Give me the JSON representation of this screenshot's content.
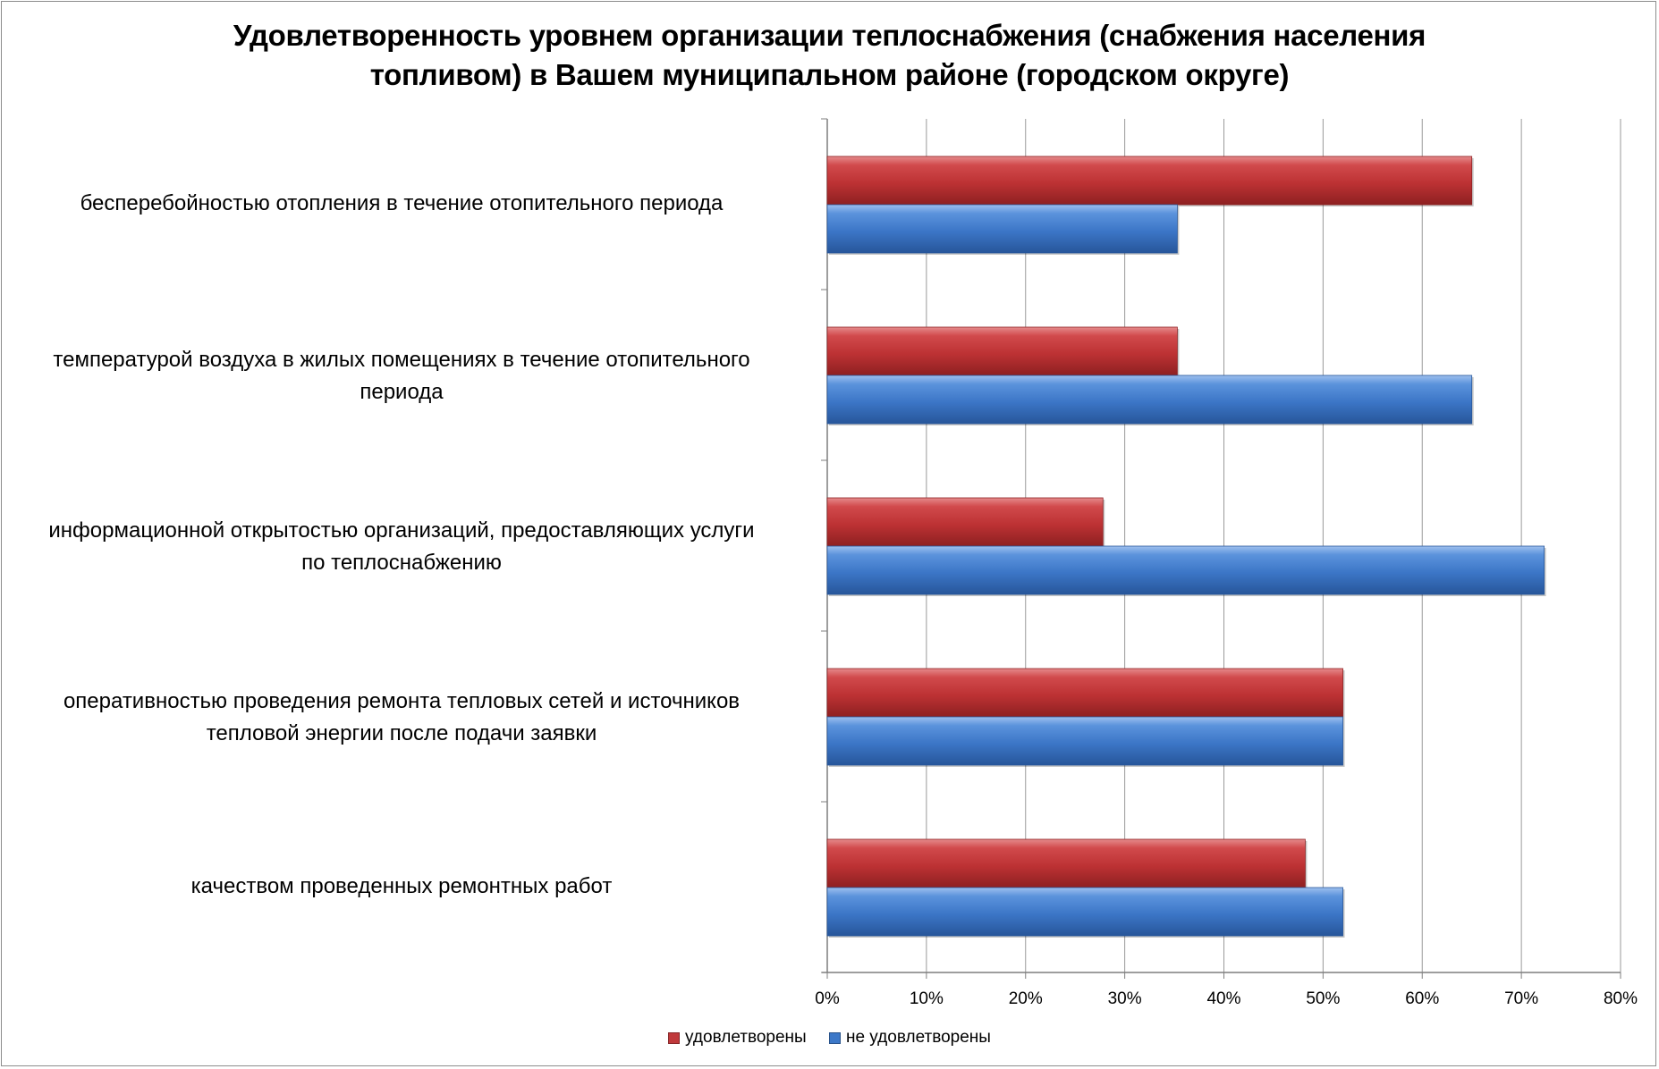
{
  "chart_data": {
    "type": "bar",
    "orientation": "horizontal",
    "title": "Удовлетворенность уровнем организации теплоснабжения (снабжения населения топливом) в Вашем муниципальном районе (городском округе)",
    "title_lines": [
      "Удовлетворенность уровнем организации теплоснабжения (снабжения населения",
      "топливом) в Вашем муниципальном районе (городском округе)"
    ],
    "categories": [
      "бесперебойностью  отопления в течение отопительного периода",
      "температурой  воздуха в жилых помещениях в течение отопительного периода",
      "информационной открытостью  организаций, предоставляющих услуги по теплоснабжению",
      "оперативностью проведения ремонта тепловых сетей и источников тепловой энергии после подачи заявки",
      "качеством  проведенных  ремонтных  работ"
    ],
    "category_lines": [
      [
        "бесперебойностью  отопления в течение отопительного периода"
      ],
      [
        "температурой  воздуха в жилых помещениях в течение отопительного",
        "периода"
      ],
      [
        "информационной открытостью  организаций, предоставляющих услуги",
        "по теплоснабжению"
      ],
      [
        "оперативностью проведения ремонта тепловых сетей и источников",
        "тепловой энергии после подачи заявки"
      ],
      [
        "качеством  проведенных  ремонтных  работ"
      ]
    ],
    "series": [
      {
        "name": "удовлетворены",
        "color": "#c0393b",
        "values": [
          65,
          35.3,
          27.8,
          52,
          48.2
        ]
      },
      {
        "name": "не удовлетворены",
        "color": "#3c78c8",
        "values": [
          35.3,
          65,
          72.3,
          52,
          52
        ]
      }
    ],
    "xlim": [
      0,
      80
    ],
    "x_ticks": [
      "0%",
      "10%",
      "20%",
      "30%",
      "40%",
      "50%",
      "60%",
      "70%",
      "80%"
    ],
    "grid": true,
    "legend_position": "bottom"
  }
}
